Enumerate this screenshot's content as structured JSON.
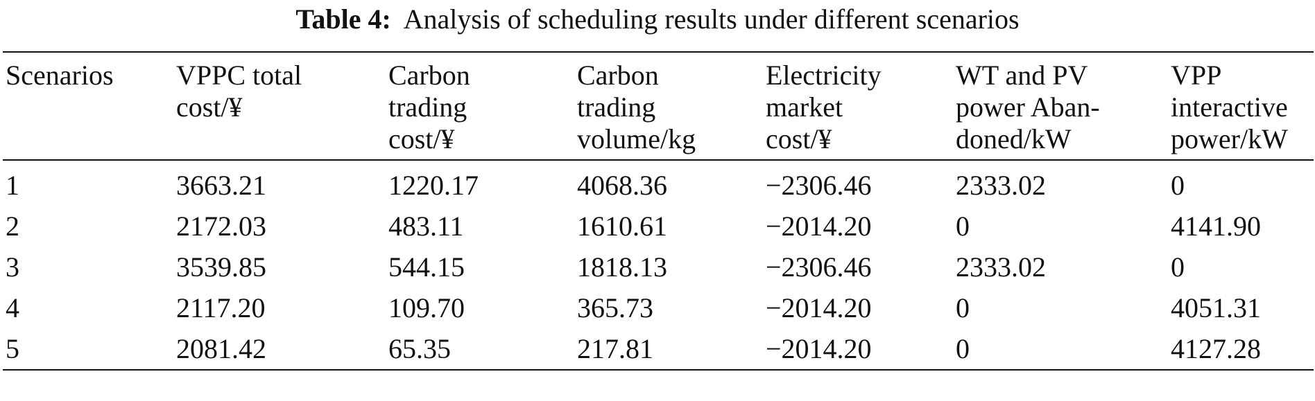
{
  "caption": {
    "label": "Table 4:",
    "text": "Analysis of scheduling results under different scenarios"
  },
  "table": {
    "headers": [
      "Scenarios",
      "VPPC total\ncost/¥",
      "Carbon\ntrading\ncost/¥",
      "Carbon\ntrading\nvolume/kg",
      "Electricity\nmarket\ncost/¥",
      "WT and PV\npower Aban-\ndoned/kW",
      "VPP\ninteractive\npower/kW"
    ],
    "rows": [
      [
        "1",
        "3663.21",
        "1220.17",
        "4068.36",
        "−2306.46",
        "2333.02",
        "0"
      ],
      [
        "2",
        "2172.03",
        "483.11",
        "1610.61",
        "−2014.20",
        "0",
        "4141.90"
      ],
      [
        "3",
        "3539.85",
        "544.15",
        "1818.13",
        "−2306.46",
        "2333.02",
        "0"
      ],
      [
        "4",
        "2117.20",
        "109.70",
        "365.73",
        "−2014.20",
        "0",
        "4051.31"
      ],
      [
        "5",
        "2081.42",
        "65.35",
        "217.81",
        "−2014.20",
        "0",
        "4127.28"
      ]
    ]
  }
}
